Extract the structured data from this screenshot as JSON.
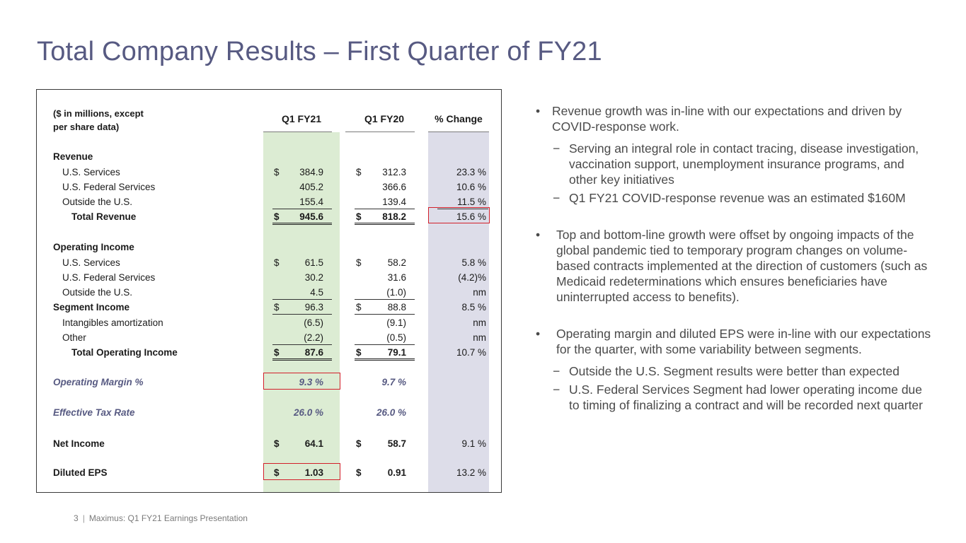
{
  "title": "Total Company Results – First Quarter of FY21",
  "table": {
    "header_label_line1": "($ in millions, except",
    "header_label_line2": "per share data)",
    "col1": "Q1 FY21",
    "col2": "Q1 FY20",
    "col3": "% Change"
  },
  "rows": {
    "revenue_heading": "Revenue",
    "rev_us": {
      "label": "U.S. Services",
      "d": "$",
      "v1": "384.9",
      "v2": "312.3",
      "pct": "23.3 %"
    },
    "rev_fed": {
      "label": "U.S. Federal Services",
      "v1": "405.2",
      "v2": "366.6",
      "pct": "10.6 %"
    },
    "rev_out": {
      "label": "Outside the U.S.",
      "v1": "155.4",
      "v2": "139.4",
      "pct": "11.5 %"
    },
    "rev_total": {
      "label": "Total Revenue",
      "d": "$",
      "v1": "945.6",
      "v2": "818.2",
      "pct": "15.6 %"
    },
    "opinc_heading": "Operating Income",
    "op_us": {
      "label": "U.S. Services",
      "d": "$",
      "v1": "61.5",
      "v2": "58.2",
      "pct": "5.8 %"
    },
    "op_fed": {
      "label": "U.S. Federal Services",
      "v1": "30.2",
      "v2": "31.6",
      "pct": "(4.2)%"
    },
    "op_out": {
      "label": "Outside the U.S.",
      "v1": "4.5",
      "v2": "(1.0)",
      "pct": "nm"
    },
    "seg": {
      "label": "Segment Income",
      "d": "$",
      "v1": "96.3",
      "v2": "88.8",
      "pct": "8.5 %"
    },
    "intang": {
      "label": "Intangibles amortization",
      "v1": "(6.5)",
      "v2": "(9.1)",
      "pct": "nm"
    },
    "other": {
      "label": "Other",
      "v1": "(2.2)",
      "v2": "(0.5)",
      "pct": "nm"
    },
    "op_total": {
      "label": "Total Operating Income",
      "d": "$",
      "v1": "87.6",
      "v2": "79.1",
      "pct": "10.7 %"
    },
    "margin": {
      "label": "Operating Margin %",
      "v1": "9.3 %",
      "v2": "9.7 %"
    },
    "tax": {
      "label": "Effective Tax Rate",
      "v1": "26.0 %",
      "v2": "26.0 %"
    },
    "netinc": {
      "label": "Net Income",
      "d": "$",
      "v1": "64.1",
      "v2": "58.7",
      "pct": "9.1 %"
    },
    "eps": {
      "label": "Diluted EPS",
      "d": "$",
      "v1": "1.03",
      "v2": "0.91",
      "pct": "13.2 %"
    }
  },
  "bullets": {
    "b1": "Revenue growth was in-line with our expectations and driven by COVID-response work.",
    "b1_s1": "Serving an integral role in contact tracing, disease investigation, vaccination support, unemployment insurance programs, and other key initiatives",
    "b1_s2": "Q1 FY21 COVID-response revenue was an estimated $160M",
    "b2": "Top and bottom-line growth were offset by ongoing impacts of the global pandemic tied to temporary program changes on volume-based contracts implemented at the direction of customers (such as Medicaid redeterminations which ensures beneficiaries have uninterrupted access to benefits).",
    "b3": "Operating margin and diluted EPS were in-line with our expectations for the quarter, with some variability between segments.",
    "b3_s1": "Outside the U.S. Segment results were better than expected",
    "b3_s2": "U.S. Federal Services Segment had lower operating income due to timing of finalizing a contract and will be recorded next quarter",
    "bullet_mark": "•",
    "dash_mark": "−"
  },
  "footer": {
    "page": "3",
    "sep": "|",
    "text": "Maximus: Q1 FY21 Earnings Presentation"
  }
}
